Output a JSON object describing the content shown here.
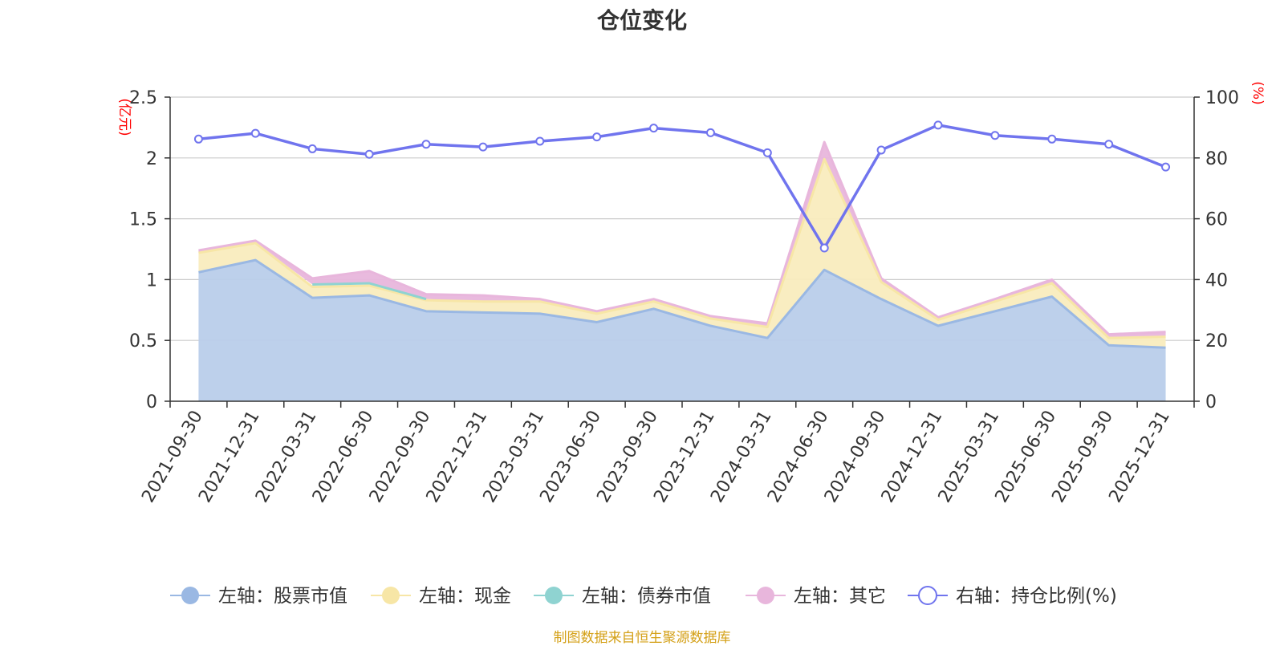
{
  "title": "仓位变化",
  "source": "制图数据来自恒生聚源数据库",
  "colors": {
    "stock": "#9ab8e3",
    "stock_fill": "#b9cdea",
    "cash": "#f7e6a6",
    "cash_fill": "#f9ecbe",
    "bond": "#8fd3d1",
    "other": "#e8b6dc",
    "ratio": "#7074ee",
    "axis": "#333333",
    "grid": "#cccccc",
    "unit": "#ff0000"
  },
  "chart_data": {
    "type": "area",
    "categories": [
      "2021-09-30",
      "2021-12-31",
      "2022-03-31",
      "2022-06-30",
      "2022-09-30",
      "2022-12-31",
      "2023-03-31",
      "2023-06-30",
      "2023-09-30",
      "2023-12-31",
      "2024-03-31",
      "2024-06-30",
      "2024-09-30",
      "2024-12-31",
      "2025-03-31",
      "2025-06-30",
      "2025-09-30",
      "2025-12-31"
    ],
    "left_axis": {
      "unit": "(亿元)",
      "min": 0,
      "max": 2.5,
      "ticks": [
        "0",
        "0.5",
        "1",
        "1.5",
        "2",
        "2.5"
      ]
    },
    "right_axis": {
      "unit": "(%)",
      "min": 0,
      "max": 100,
      "ticks": [
        "0",
        "20",
        "40",
        "60",
        "80",
        "100"
      ]
    },
    "grid": true,
    "legend_position": "bottom",
    "series": [
      {
        "name": "左轴：股票市值",
        "axis": "left",
        "type": "area",
        "stacked": true,
        "values": [
          1.06,
          1.16,
          0.85,
          0.87,
          0.74,
          0.73,
          0.72,
          0.65,
          0.76,
          0.62,
          0.52,
          1.08,
          0.84,
          0.62,
          0.74,
          0.86,
          0.46,
          0.44
        ]
      },
      {
        "name": "左轴：现金",
        "axis": "left",
        "type": "area",
        "stacked": true,
        "values": [
          0.16,
          0.14,
          0.09,
          0.08,
          0.09,
          0.09,
          0.1,
          0.07,
          0.06,
          0.06,
          0.09,
          0.91,
          0.14,
          0.05,
          0.08,
          0.11,
          0.06,
          0.09
        ]
      },
      {
        "name": "左轴：债券市值",
        "axis": "left",
        "type": "area",
        "stacked": true,
        "values": [
          0,
          0,
          0.02,
          0.02,
          0.01,
          null,
          null,
          null,
          null,
          null,
          null,
          null,
          null,
          null,
          null,
          null,
          null,
          null
        ]
      },
      {
        "name": "左轴：其它",
        "axis": "left",
        "type": "area",
        "stacked": true,
        "values": [
          0.02,
          0.02,
          0.05,
          0.1,
          0.04,
          0.05,
          0.02,
          0.02,
          0.02,
          0.02,
          0.03,
          0.14,
          0.03,
          0.02,
          0.02,
          0.03,
          0.03,
          0.04
        ]
      },
      {
        "name": "右轴：持仓比例(%)",
        "axis": "right",
        "type": "line",
        "values": [
          86.2,
          88.1,
          83.0,
          81.2,
          84.5,
          83.6,
          85.5,
          86.9,
          89.8,
          88.3,
          81.7,
          50.4,
          82.6,
          90.8,
          87.4,
          86.2,
          84.5,
          77.0
        ]
      }
    ]
  }
}
